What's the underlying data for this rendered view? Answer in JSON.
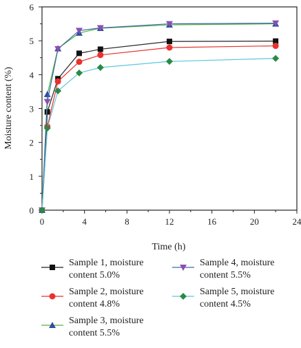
{
  "chart_data": {
    "type": "line",
    "xlabel": "Time (h)",
    "ylabel": "Moisture content (%)",
    "xlim": [
      0,
      24
    ],
    "ylim": [
      0,
      6
    ],
    "xticks": [
      0,
      4,
      8,
      12,
      16,
      20,
      24
    ],
    "yticks": [
      0,
      1,
      2,
      3,
      4,
      5,
      6
    ],
    "grid": false,
    "legend_position": "below plot, two columns",
    "x": [
      0,
      0.5,
      1.5,
      3.5,
      5.5,
      12,
      22
    ],
    "series": [
      {
        "name": "Sample 1, moisture content 5.0%",
        "values": [
          0,
          2.9,
          3.88,
          4.63,
          4.75,
          4.98,
          4.99
        ],
        "color": "#222222",
        "marker": "square"
      },
      {
        "name": "Sample 2, moisture content 4.8%",
        "values": [
          0,
          2.47,
          3.8,
          4.38,
          4.58,
          4.8,
          4.85
        ],
        "color": "#e8322d",
        "marker": "circle"
      },
      {
        "name": "Sample 3, moisture content 5.5%",
        "values": [
          0,
          3.42,
          4.77,
          5.23,
          5.37,
          5.47,
          5.5
        ],
        "color": "#56b145",
        "marker": "triangle-up"
      },
      {
        "name": "Sample 4, moisture content 5.5%",
        "values": [
          0,
          3.2,
          4.76,
          5.3,
          5.38,
          5.5,
          5.52
        ],
        "color": "#3e6aa8",
        "marker": "triangle-down"
      },
      {
        "name": "Sample 5, moisture content 4.5%",
        "values": [
          0,
          2.42,
          3.52,
          4.05,
          4.21,
          4.39,
          4.48
        ],
        "color": "#5cc7dd",
        "marker": "diamond"
      }
    ],
    "legend": [
      {
        "line1": "Sample 1, moisture",
        "line2": "content 5.0%"
      },
      {
        "line1": "Sample 4, moisture",
        "line2": "content 5.5%"
      },
      {
        "line1": "Sample 2, moisture",
        "line2": "content 4.8%"
      },
      {
        "line1": "Sample 5, moisture",
        "line2": "content 4.5%"
      },
      {
        "line1": "Sample 3, moisture",
        "line2": "content 5.5%"
      }
    ],
    "marker_colors": {
      "Sample 1": "#111111",
      "Sample 2": "#e8322d",
      "Sample 3": "#2f4fa0",
      "Sample 4": "#8b4fb3",
      "Sample 5": "#2a8a44"
    }
  }
}
